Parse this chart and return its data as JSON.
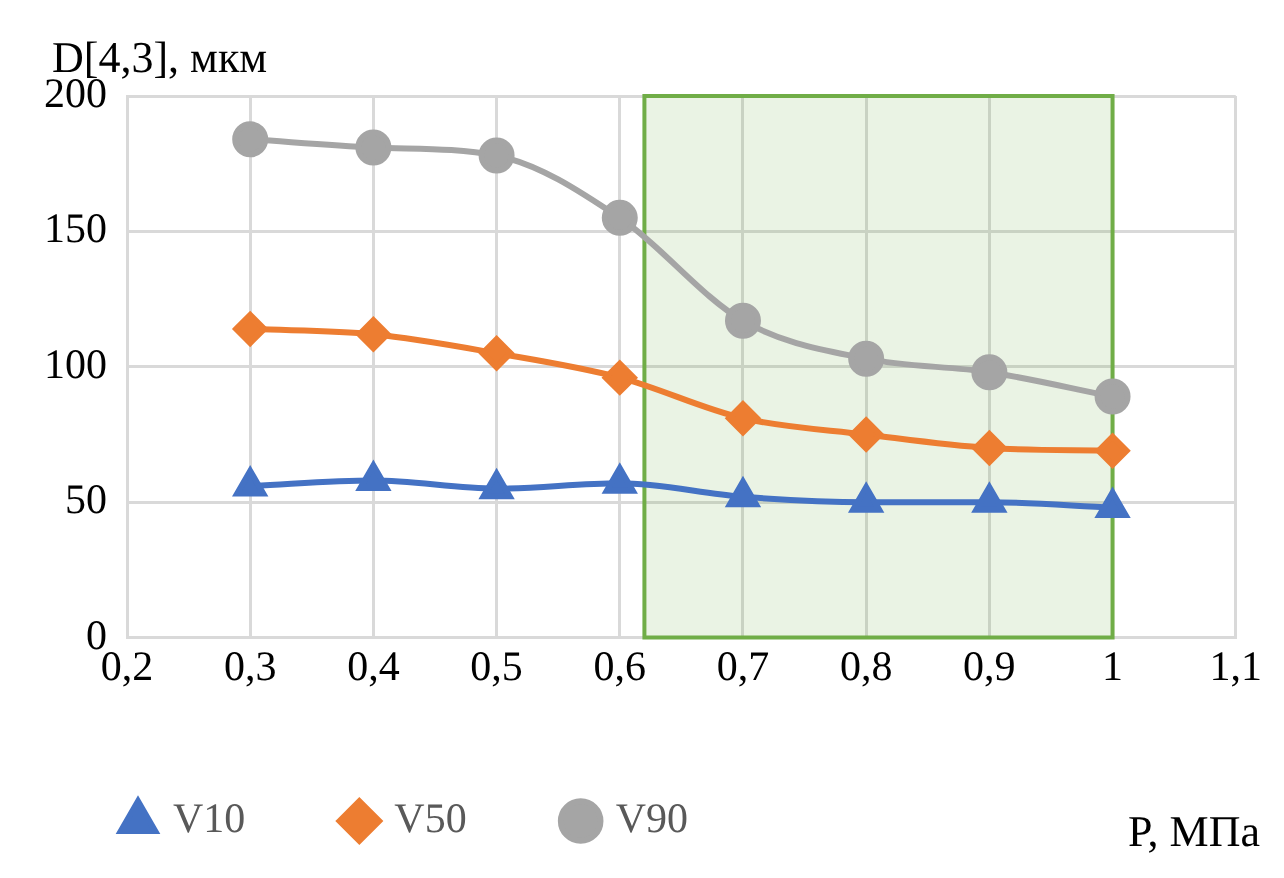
{
  "chart_data": {
    "type": "line",
    "ylabel": "D[4,3], мкм",
    "xlabel": "P, МПа",
    "x": [
      0.3,
      0.4,
      0.5,
      0.6,
      0.7,
      0.8,
      0.9,
      1
    ],
    "series": [
      {
        "name": "V10",
        "color": "#4472c4",
        "marker": "triangle",
        "values": [
          56,
          58,
          55,
          57,
          52,
          50,
          50,
          48
        ]
      },
      {
        "name": "V50",
        "color": "#ed7d31",
        "marker": "diamond",
        "values": [
          114,
          112,
          105,
          96,
          81,
          75,
          70,
          69
        ]
      },
      {
        "name": "V90",
        "color": "#a5a5a5",
        "marker": "circle",
        "values": [
          184,
          181,
          178,
          155,
          117,
          103,
          98,
          89
        ]
      }
    ],
    "xlim": [
      0.2,
      1.1
    ],
    "xticks": [
      {
        "value": 0.2,
        "label": "0,2"
      },
      {
        "value": 0.3,
        "label": "0,3"
      },
      {
        "value": 0.4,
        "label": "0,4"
      },
      {
        "value": 0.5,
        "label": "0,5"
      },
      {
        "value": 0.6,
        "label": "0,6"
      },
      {
        "value": 0.7,
        "label": "0,7"
      },
      {
        "value": 0.8,
        "label": "0,8"
      },
      {
        "value": 0.9,
        "label": "0,9"
      },
      1,
      {
        "value": 1.1,
        "label": "1,1"
      }
    ],
    "ylim": [
      0,
      200
    ],
    "yticks": [
      0,
      50,
      100,
      150,
      200
    ],
    "bands": [
      {
        "axis": "x",
        "from": 0.62,
        "to": 1,
        "color": "#70ad47"
      }
    ],
    "grid": true,
    "legend": "bottom"
  }
}
